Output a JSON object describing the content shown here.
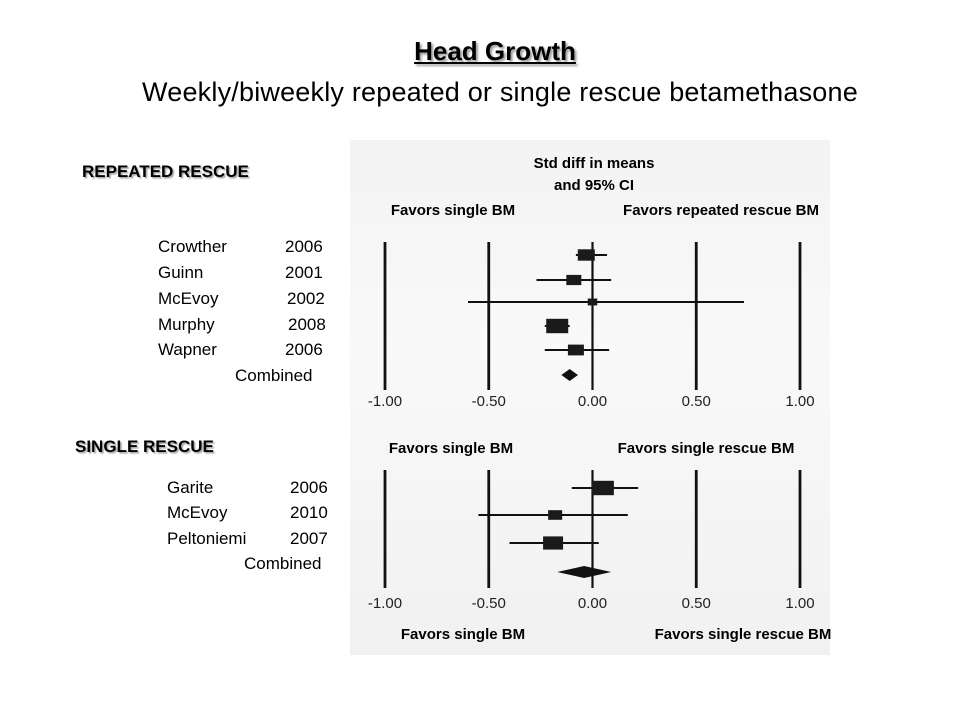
{
  "slide": {
    "title": "Head Growth",
    "subtitle": "Weekly/biweekly repeated or single rescue betamethasone"
  },
  "chart_data": [
    {
      "type": "forest",
      "section_label": "REPEATED RESCUE",
      "effect_label_line1": "Std diff in means",
      "effect_label_line2": "and 95% CI",
      "favors_left": "Favors single BM",
      "favors_right": "Favors repeated rescue BM",
      "xlim": [
        -1.0,
        1.0
      ],
      "ticks": [
        "-1.00",
        "-0.50",
        "0.00",
        "0.50",
        "1.00"
      ],
      "studies": [
        {
          "name": "Crowther",
          "year": "2006",
          "estimate": -0.03,
          "ci": [
            -0.08,
            0.07
          ],
          "weight": 0.9
        },
        {
          "name": "Guinn",
          "year": "2001",
          "estimate": -0.09,
          "ci": [
            -0.27,
            0.09
          ],
          "weight": 0.7
        },
        {
          "name": "McEvoy",
          "year": "2002",
          "estimate": 0.0,
          "ci": [
            -0.6,
            0.73
          ],
          "weight": 0.15
        },
        {
          "name": "Murphy",
          "year": "2008",
          "estimate": -0.17,
          "ci": [
            -0.23,
            -0.11
          ],
          "weight": 1.4
        },
        {
          "name": "Wapner",
          "year": "2006",
          "estimate": -0.08,
          "ci": [
            -0.23,
            0.08
          ],
          "weight": 0.8
        }
      ],
      "combined": {
        "name": "Combined",
        "estimate": -0.11,
        "ci": [
          -0.15,
          -0.07
        ]
      }
    },
    {
      "type": "forest",
      "section_label": "SINGLE RESCUE",
      "favors_left": "Favors single BM",
      "favors_right": "Favors single rescue BM",
      "favors_left_bottom": "Favors single BM",
      "favors_right_bottom": "Favors single rescue BM",
      "xlim": [
        -1.0,
        1.0
      ],
      "ticks": [
        "-1.00",
        "-0.50",
        "0.00",
        "0.50",
        "1.00"
      ],
      "studies": [
        {
          "name": "Garite",
          "year": "2006",
          "estimate": 0.05,
          "ci": [
            -0.1,
            0.22
          ],
          "weight": 1.4
        },
        {
          "name": "McEvoy",
          "year": "2010",
          "estimate": -0.18,
          "ci": [
            -0.55,
            0.17
          ],
          "weight": 0.6
        },
        {
          "name": "Peltoniemi",
          "year": "2007",
          "estimate": -0.19,
          "ci": [
            -0.4,
            0.03
          ],
          "weight": 1.2
        }
      ],
      "combined": {
        "name": "Combined",
        "estimate": -0.04,
        "ci": [
          -0.17,
          0.09
        ]
      }
    }
  ]
}
